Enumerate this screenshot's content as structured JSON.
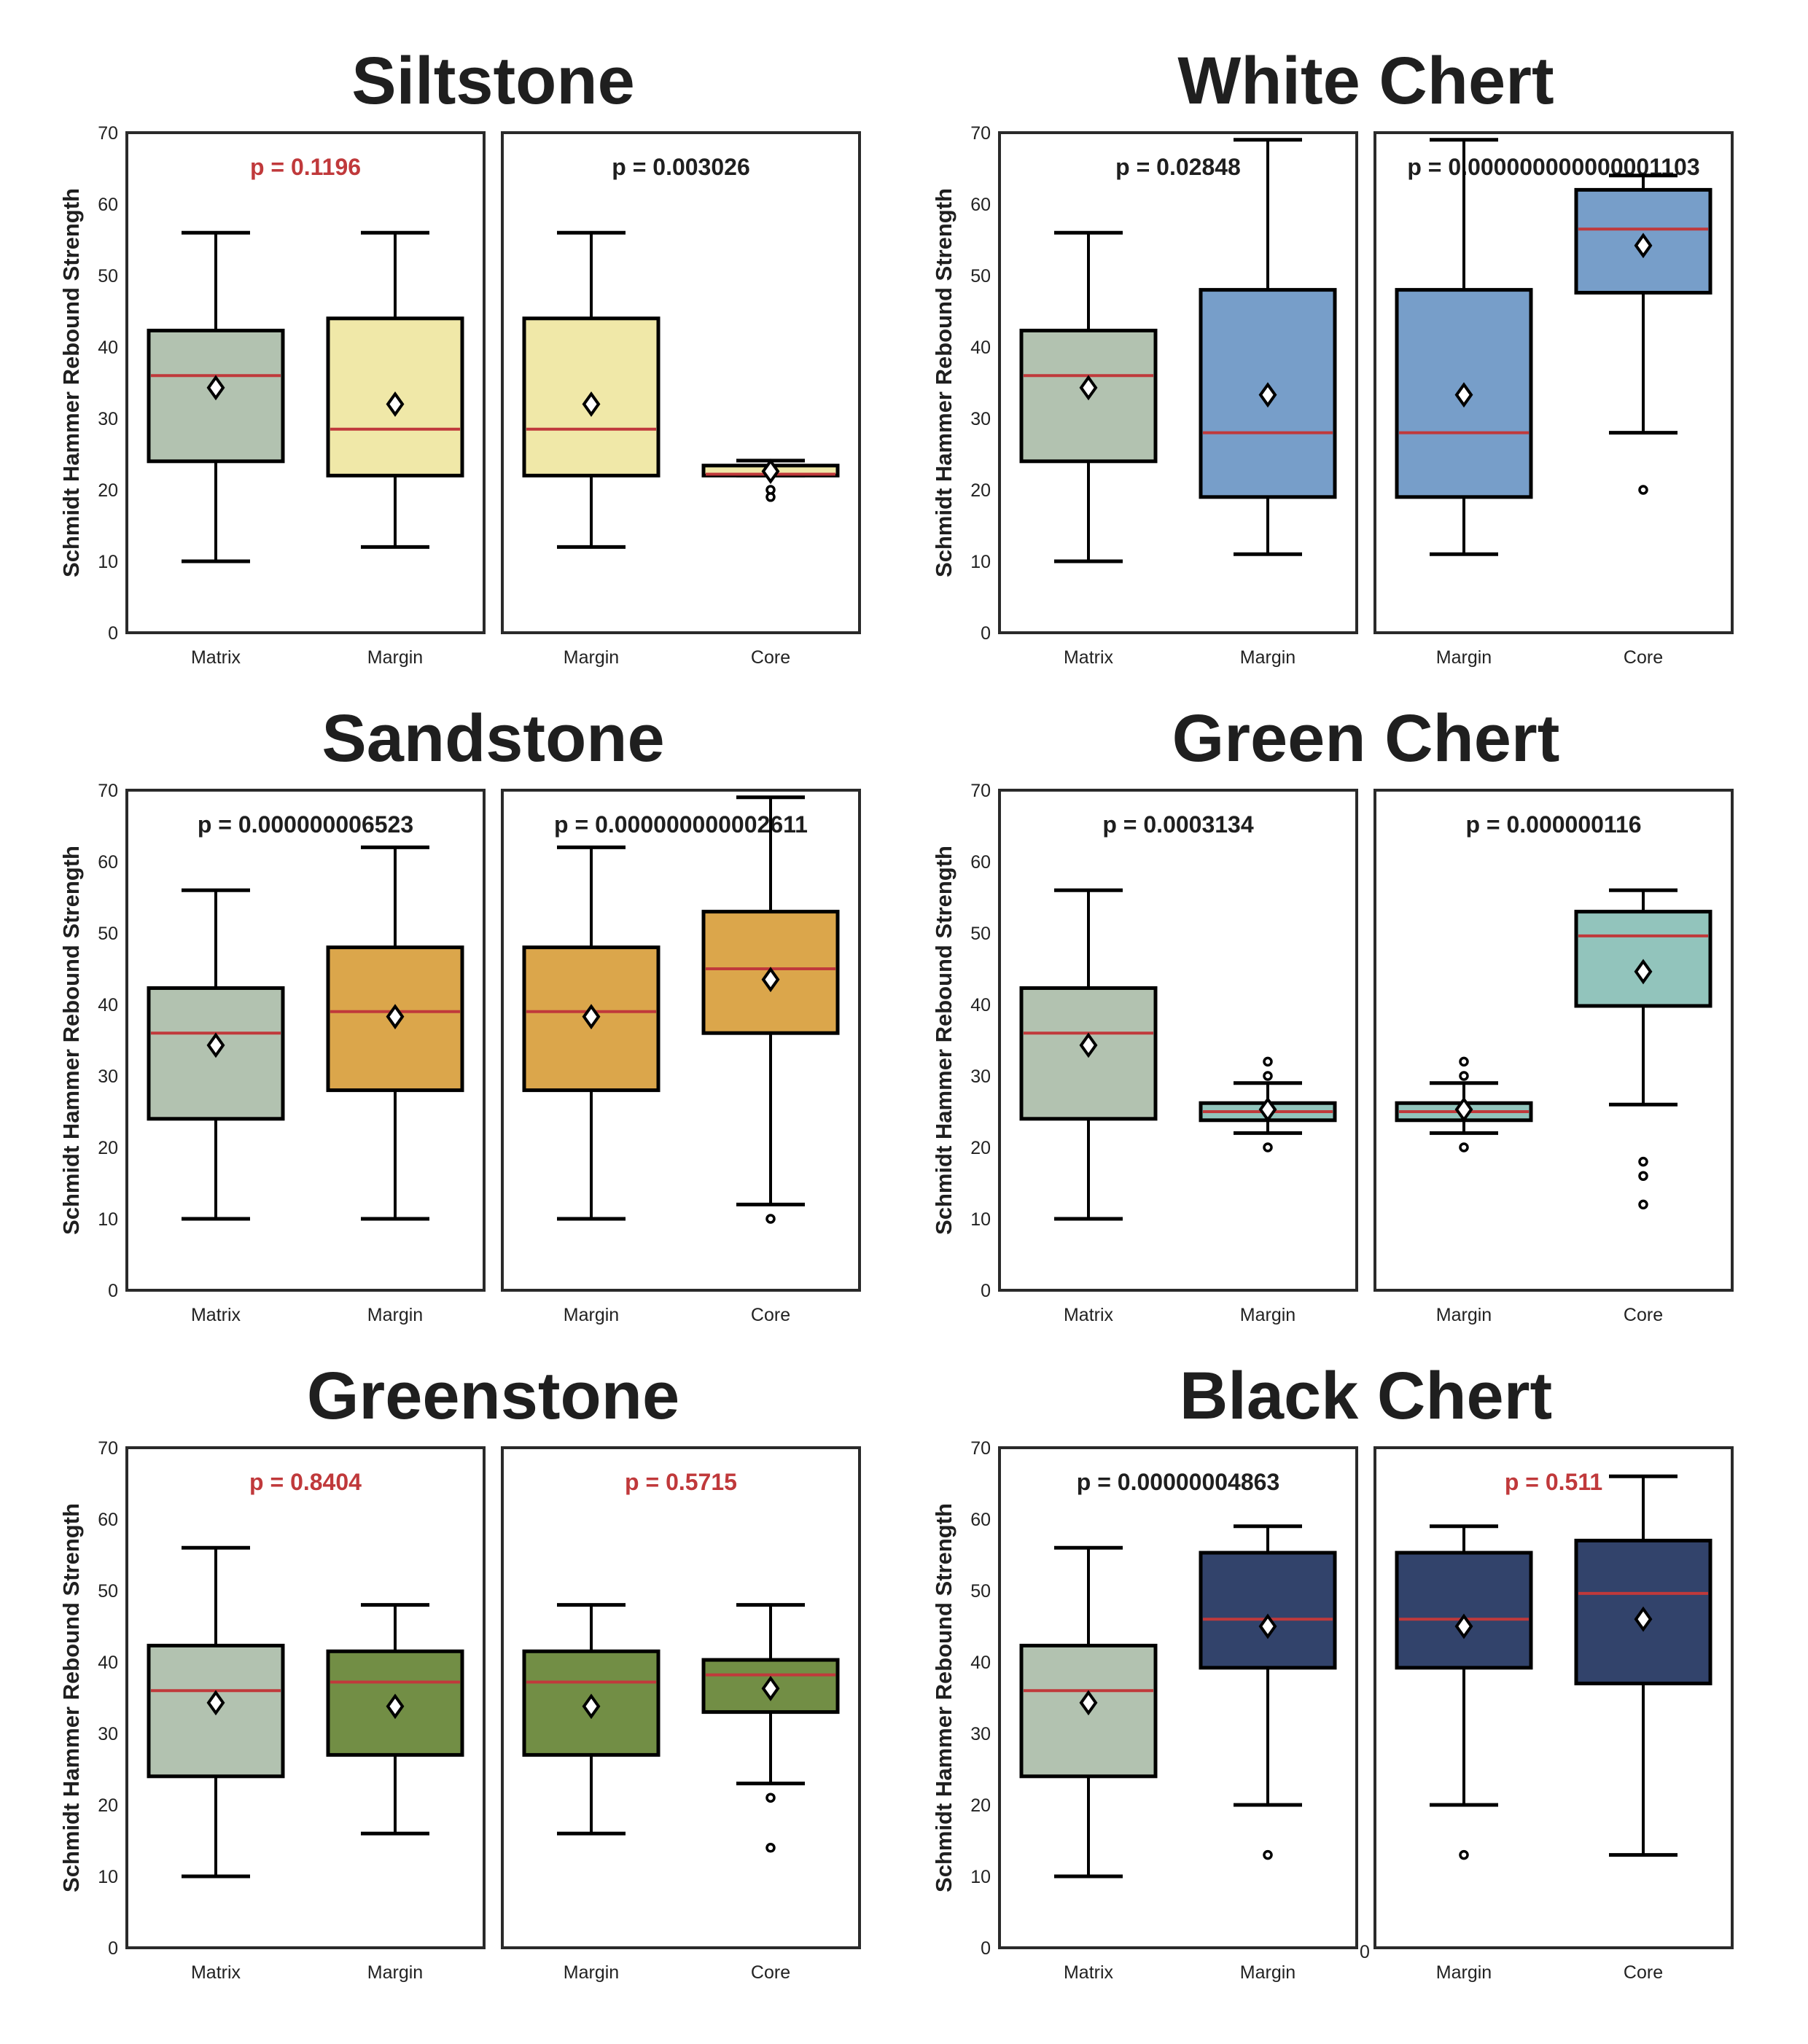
{
  "chart_data": {
    "type": "box",
    "ylabel": "Schmidt Hammer Rebound Strength",
    "ylim": [
      0,
      70
    ],
    "yticks": [
      0,
      10,
      20,
      30,
      40,
      50,
      60,
      70
    ],
    "grid": false,
    "colors": {
      "significant": "#1f1f1f",
      "not_significant": "#c0393b",
      "median": "#c0393b",
      "matrix": "#b2c2b0"
    },
    "stray_label": "0",
    "charts": [
      {
        "title": "Siltstone",
        "color": "#f0e8a8",
        "panels": [
          {
            "p": "p = 0.1196",
            "significant": false,
            "boxes": [
              {
                "label": "Matrix",
                "min": 10,
                "q1": 24,
                "median": 36,
                "q3": 42.3,
                "max": 56,
                "mean": 34.3,
                "outliers": [],
                "matrix": true
              },
              {
                "label": "Margin",
                "min": 12,
                "q1": 22,
                "median": 28.5,
                "q3": 44,
                "max": 56,
                "mean": 32,
                "outliers": []
              }
            ]
          },
          {
            "p": "p = 0.003026",
            "significant": true,
            "boxes": [
              {
                "label": "Margin",
                "min": 12,
                "q1": 22,
                "median": 28.5,
                "q3": 44,
                "max": 56,
                "mean": 32,
                "outliers": []
              },
              {
                "label": "Core",
                "min": 22,
                "q1": 22,
                "median": 22.2,
                "q3": 23.4,
                "max": 24.1,
                "mean": 22.6,
                "outliers": [
                  19,
                  20
                ]
              }
            ]
          }
        ]
      },
      {
        "title": "White Chert",
        "color": "#779ec9",
        "panels": [
          {
            "p": "p = 0.02848",
            "significant": true,
            "boxes": [
              {
                "label": "Matrix",
                "min": 10,
                "q1": 24,
                "median": 36,
                "q3": 42.3,
                "max": 56,
                "mean": 34.3,
                "outliers": [],
                "matrix": true
              },
              {
                "label": "Margin",
                "min": 11,
                "q1": 19,
                "median": 28,
                "q3": 48,
                "max": 69,
                "mean": 33.3,
                "outliers": []
              }
            ]
          },
          {
            "p": "p = 0.000000000000001103",
            "significant": true,
            "boxes": [
              {
                "label": "Margin",
                "min": 11,
                "q1": 19,
                "median": 28,
                "q3": 48,
                "max": 69,
                "mean": 33.3,
                "outliers": []
              },
              {
                "label": "Core",
                "min": 28,
                "q1": 47.6,
                "median": 56.5,
                "q3": 62,
                "max": 64,
                "mean": 54.2,
                "outliers": [
                  20
                ]
              }
            ]
          }
        ]
      },
      {
        "title": "Sandstone",
        "color": "#dba64b",
        "panels": [
          {
            "p": "p = 0.000000006523",
            "significant": true,
            "boxes": [
              {
                "label": "Matrix",
                "min": 10,
                "q1": 24,
                "median": 36,
                "q3": 42.3,
                "max": 56,
                "mean": 34.3,
                "outliers": [],
                "matrix": true
              },
              {
                "label": "Margin",
                "min": 10,
                "q1": 28,
                "median": 39,
                "q3": 48,
                "max": 62,
                "mean": 38.3,
                "outliers": []
              }
            ]
          },
          {
            "p": "p = 0.000000000002611",
            "significant": true,
            "boxes": [
              {
                "label": "Margin",
                "min": 10,
                "q1": 28,
                "median": 39,
                "q3": 48,
                "max": 62,
                "mean": 38.3,
                "outliers": []
              },
              {
                "label": "Core",
                "min": 12,
                "q1": 36,
                "median": 45,
                "q3": 53,
                "max": 69,
                "mean": 43.5,
                "outliers": [
                  10
                ]
              }
            ]
          }
        ]
      },
      {
        "title": "Green Chert",
        "color": "#92c4bc",
        "panels": [
          {
            "p": "p = 0.0003134",
            "significant": true,
            "boxes": [
              {
                "label": "Matrix",
                "min": 10,
                "q1": 24,
                "median": 36,
                "q3": 42.3,
                "max": 56,
                "mean": 34.3,
                "outliers": [],
                "matrix": true
              },
              {
                "label": "Margin",
                "min": 22,
                "q1": 23.8,
                "median": 25,
                "q3": 26.2,
                "max": 29,
                "mean": 25.3,
                "outliers": [
                  20,
                  30,
                  32
                ]
              }
            ]
          },
          {
            "p": "p = 0.000000116",
            "significant": true,
            "boxes": [
              {
                "label": "Margin",
                "min": 22,
                "q1": 23.8,
                "median": 25,
                "q3": 26.2,
                "max": 29,
                "mean": 25.3,
                "outliers": [
                  20,
                  30,
                  32
                ]
              },
              {
                "label": "Core",
                "min": 26,
                "q1": 39.8,
                "median": 49.6,
                "q3": 53,
                "max": 56,
                "mean": 44.6,
                "outliers": [
                  12,
                  16,
                  18
                ]
              }
            ]
          }
        ]
      },
      {
        "title": "Greenstone",
        "color": "#728e45",
        "panels": [
          {
            "p": "p = 0.8404",
            "significant": false,
            "boxes": [
              {
                "label": "Matrix",
                "min": 10,
                "q1": 24,
                "median": 36,
                "q3": 42.3,
                "max": 56,
                "mean": 34.3,
                "outliers": [],
                "matrix": true
              },
              {
                "label": "Margin",
                "min": 16,
                "q1": 27,
                "median": 37.2,
                "q3": 41.5,
                "max": 48,
                "mean": 33.8,
                "outliers": []
              }
            ]
          },
          {
            "p": "p = 0.5715",
            "significant": false,
            "boxes": [
              {
                "label": "Margin",
                "min": 16,
                "q1": 27,
                "median": 37.2,
                "q3": 41.5,
                "max": 48,
                "mean": 33.8,
                "outliers": []
              },
              {
                "label": "Core",
                "min": 23,
                "q1": 33,
                "median": 38.2,
                "q3": 40.3,
                "max": 48,
                "mean": 36.3,
                "outliers": [
                  14,
                  21
                ]
              }
            ]
          }
        ]
      },
      {
        "title": "Black Chert",
        "color": "#32436b",
        "panels": [
          {
            "p": "p = 0.00000004863",
            "significant": true,
            "boxes": [
              {
                "label": "Matrix",
                "min": 10,
                "q1": 24,
                "median": 36,
                "q3": 42.3,
                "max": 56,
                "mean": 34.3,
                "outliers": [],
                "matrix": true
              },
              {
                "label": "Margin",
                "min": 20,
                "q1": 39.2,
                "median": 46,
                "q3": 55.3,
                "max": 59,
                "mean": 45,
                "outliers": [
                  13
                ]
              }
            ]
          },
          {
            "p": "p = 0.511",
            "significant": false,
            "boxes": [
              {
                "label": "Margin",
                "min": 20,
                "q1": 39.2,
                "median": 46,
                "q3": 55.3,
                "max": 59,
                "mean": 45,
                "outliers": [
                  13
                ]
              },
              {
                "label": "Core",
                "min": 13,
                "q1": 37,
                "median": 49.6,
                "q3": 57,
                "max": 66,
                "mean": 46,
                "outliers": []
              }
            ]
          }
        ]
      }
    ]
  }
}
